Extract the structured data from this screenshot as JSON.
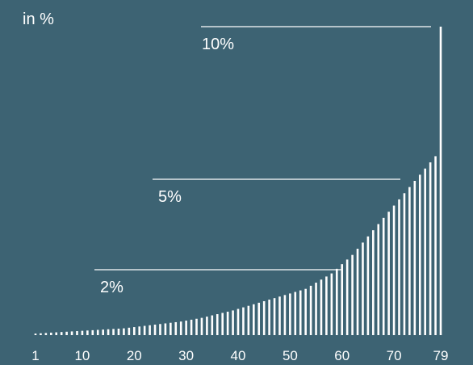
{
  "chart_data": {
    "type": "bar",
    "unit_label": "in %",
    "x_ticks": [
      "1",
      "10",
      "20",
      "30",
      "40",
      "50",
      "60",
      "70",
      "79"
    ],
    "x_tick_values": [
      1,
      10,
      20,
      30,
      40,
      50,
      60,
      70,
      79
    ],
    "values": [
      0.05,
      0.06,
      0.07,
      0.08,
      0.09,
      0.1,
      0.11,
      0.12,
      0.13,
      0.14,
      0.15,
      0.16,
      0.17,
      0.18,
      0.19,
      0.2,
      0.21,
      0.22,
      0.24,
      0.26,
      0.28,
      0.3,
      0.32,
      0.34,
      0.36,
      0.38,
      0.4,
      0.42,
      0.44,
      0.47,
      0.5,
      0.53,
      0.56,
      0.6,
      0.64,
      0.68,
      0.72,
      0.76,
      0.8,
      0.85,
      0.9,
      0.95,
      1.0,
      1.05,
      1.1,
      1.15,
      1.2,
      1.25,
      1.3,
      1.35,
      1.4,
      1.45,
      1.5,
      1.6,
      1.7,
      1.8,
      1.9,
      2.0,
      2.15,
      2.3,
      2.45,
      2.6,
      2.8,
      3.0,
      3.2,
      3.4,
      3.6,
      3.8,
      4.0,
      4.2,
      4.4,
      4.6,
      4.8,
      5.0,
      5.2,
      5.4,
      5.6,
      5.8,
      10.0
    ],
    "reference_lines": [
      {
        "label": "2%",
        "value": 2
      },
      {
        "label": "5%",
        "value": 5
      },
      {
        "label": "10%",
        "value": 10
      }
    ],
    "ylim": [
      0,
      10
    ],
    "colors": {
      "background": "#3d6373",
      "bars": "#ffffff",
      "lines": "#ffffff"
    }
  }
}
